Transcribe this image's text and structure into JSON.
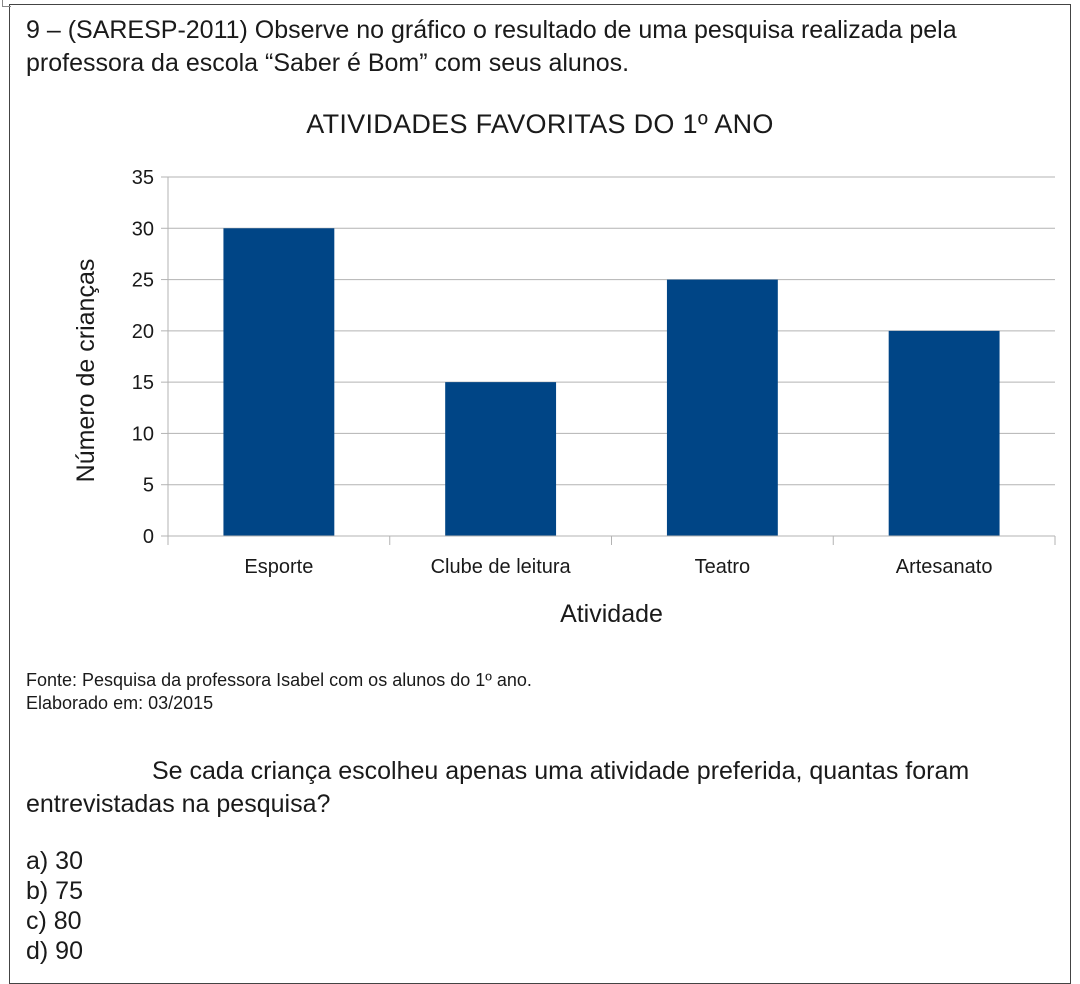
{
  "header": {
    "text": "9 – (SARESP-2011) Observe no gráfico o resultado de uma pesquisa realizada pela professora da escola “Saber é Bom” com seus alunos."
  },
  "chart_data": {
    "type": "bar",
    "title": "ATIVIDADES FAVORITAS DO 1º ANO",
    "xlabel": "Atividade",
    "ylabel": "Número de crianças",
    "categories": [
      "Esporte",
      "Clube de leitura",
      "Teatro",
      "Artesanato"
    ],
    "values": [
      30,
      15,
      25,
      20
    ],
    "ylim": [
      0,
      35
    ],
    "yticks": [
      0,
      5,
      10,
      15,
      20,
      25,
      30,
      35
    ],
    "grid": true,
    "bar_color": "#004586"
  },
  "source": {
    "line1": "Fonte: Pesquisa da professora Isabel com os alunos do 1º ano.",
    "line2": "Elaborado em: 03/2015"
  },
  "question": {
    "text": "Se cada criança escolheu apenas uma atividade preferida, quantas foram entrevistadas na pesquisa?"
  },
  "options": [
    "a) 30",
    "b) 75",
    "c) 80",
    "d) 90"
  ]
}
